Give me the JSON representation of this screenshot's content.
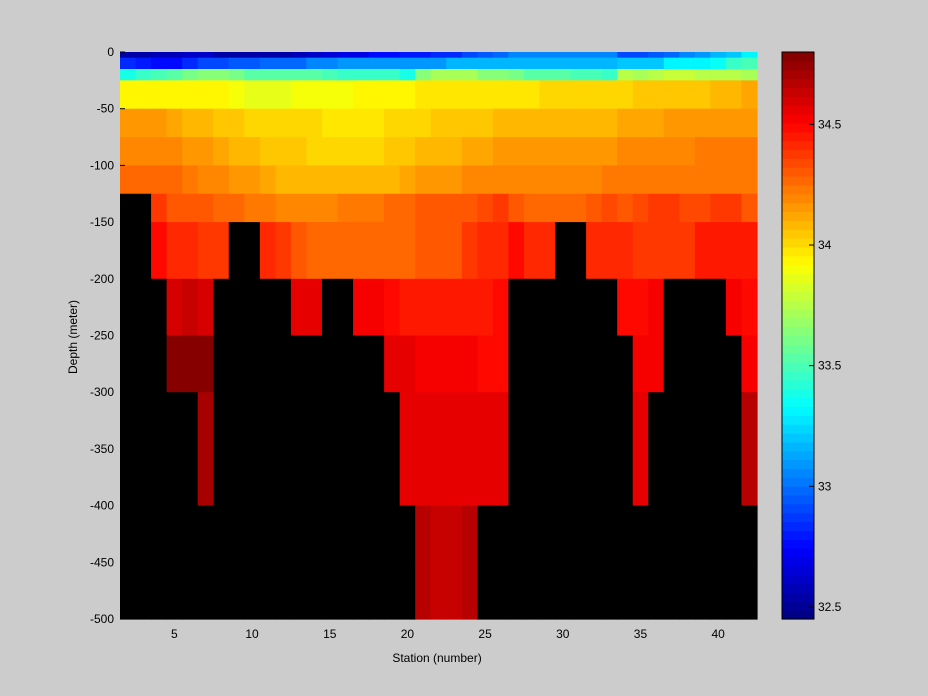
{
  "figure": {
    "background": "#cccccc"
  },
  "chart_data": {
    "type": "heatmap",
    "title": "",
    "xlabel": "Station (number)",
    "ylabel": "Depth (meter)",
    "xlim": [
      1.5,
      42.5
    ],
    "ylim": [
      -500,
      0
    ],
    "x_ticks": [
      5,
      10,
      15,
      20,
      25,
      30,
      35,
      40
    ],
    "y_ticks": [
      0,
      -50,
      -100,
      -150,
      -200,
      -250,
      -300,
      -350,
      -400,
      -450,
      -500
    ],
    "stations_start": 2,
    "depth_bins_top": [
      0,
      -5,
      -15,
      -25,
      -50,
      -75,
      -100,
      -125,
      -150,
      -200,
      -250,
      -300,
      -400,
      -450,
      -500
    ],
    "nodata_color": "#000000",
    "colormap": "jet",
    "colorbar": {
      "range": [
        32.45,
        34.8
      ],
      "ticks": [
        32.5,
        33,
        33.5,
        34,
        34.5
      ],
      "levels": 64
    },
    "salinity_grid": [
      [
        32.55,
        32.55,
        32.58,
        32.58,
        32.6,
        32.6,
        32.55,
        32.55,
        32.53,
        32.53,
        32.56,
        32.58,
        32.62,
        32.65,
        32.68,
        32.7,
        32.75,
        32.78,
        32.8,
        32.8,
        32.83,
        32.85,
        32.9,
        32.95,
        33.0,
        33.05,
        33.05,
        33.05,
        33.05,
        33.05,
        33.05,
        33.05,
        32.9,
        32.9,
        32.95,
        33.0,
        33.05,
        33.1,
        33.15,
        33.2,
        33.3
      ],
      [
        32.85,
        32.8,
        32.75,
        32.75,
        32.85,
        32.9,
        32.9,
        32.95,
        32.95,
        33.0,
        33.0,
        33.0,
        33.05,
        33.05,
        33.1,
        33.1,
        33.1,
        33.1,
        33.1,
        33.1,
        33.1,
        33.15,
        33.15,
        33.15,
        33.15,
        33.15,
        33.15,
        33.15,
        33.15,
        33.15,
        33.15,
        33.15,
        33.2,
        33.2,
        33.2,
        33.3,
        33.3,
        33.3,
        33.35,
        33.45,
        33.5
      ],
      [
        33.4,
        33.45,
        33.5,
        33.55,
        33.6,
        33.65,
        33.65,
        33.6,
        33.55,
        33.55,
        33.55,
        33.55,
        33.55,
        33.5,
        33.45,
        33.45,
        33.45,
        33.45,
        33.4,
        33.65,
        33.7,
        33.7,
        33.7,
        33.65,
        33.65,
        33.6,
        33.55,
        33.55,
        33.55,
        33.5,
        33.5,
        33.45,
        33.75,
        33.7,
        33.75,
        33.8,
        33.8,
        33.75,
        33.75,
        33.75,
        33.7
      ],
      [
        33.95,
        33.95,
        33.95,
        33.95,
        33.95,
        33.95,
        33.92,
        33.9,
        33.88,
        33.88,
        33.88,
        33.9,
        33.9,
        33.9,
        33.9,
        33.92,
        33.92,
        33.94,
        33.94,
        33.96,
        33.96,
        33.96,
        33.96,
        33.96,
        33.96,
        33.98,
        33.98,
        34.0,
        34.0,
        34.0,
        34.0,
        34.0,
        34.02,
        34.04,
        34.04,
        34.06,
        34.06,
        34.06,
        34.08,
        34.1,
        34.12
      ],
      [
        34.15,
        34.15,
        34.15,
        34.12,
        34.1,
        34.08,
        34.05,
        34.05,
        34.02,
        34.02,
        34.0,
        34.0,
        34.0,
        33.98,
        33.98,
        33.98,
        33.98,
        34.0,
        34.0,
        34.02,
        34.04,
        34.04,
        34.06,
        34.06,
        34.08,
        34.08,
        34.08,
        34.1,
        34.1,
        34.1,
        34.1,
        34.1,
        34.12,
        34.12,
        34.12,
        34.14,
        34.14,
        34.14,
        34.16,
        34.16,
        34.16
      ],
      [
        34.2,
        34.2,
        34.2,
        34.18,
        34.16,
        34.14,
        34.12,
        34.1,
        34.08,
        34.06,
        34.04,
        34.04,
        34.02,
        34.0,
        34.0,
        34.0,
        34.02,
        34.04,
        34.06,
        34.08,
        34.1,
        34.1,
        34.12,
        34.12,
        34.14,
        34.14,
        34.14,
        34.16,
        34.16,
        34.16,
        34.16,
        34.16,
        34.18,
        34.18,
        34.2,
        34.2,
        34.2,
        34.22,
        34.22,
        34.22,
        34.22
      ],
      [
        34.25,
        34.25,
        34.25,
        34.25,
        34.22,
        34.2,
        34.18,
        34.16,
        34.14,
        34.12,
        34.1,
        34.1,
        34.08,
        34.08,
        34.08,
        34.08,
        34.1,
        34.1,
        34.12,
        34.14,
        34.16,
        34.16,
        34.18,
        34.18,
        34.18,
        34.18,
        34.2,
        34.2,
        34.2,
        34.2,
        34.2,
        34.22,
        34.22,
        34.24,
        34.24,
        34.24,
        34.24,
        34.24,
        34.24,
        34.24,
        34.24
      ],
      [
        null,
        null,
        34.38,
        34.32,
        34.3,
        34.3,
        34.28,
        34.26,
        34.24,
        34.22,
        34.2,
        34.2,
        34.2,
        34.2,
        34.22,
        34.22,
        34.24,
        34.26,
        34.28,
        34.3,
        34.3,
        34.32,
        34.32,
        34.34,
        34.36,
        34.3,
        34.28,
        34.28,
        34.28,
        34.28,
        34.3,
        34.34,
        34.32,
        34.34,
        34.36,
        34.36,
        34.34,
        34.34,
        34.36,
        34.38,
        34.3
      ],
      [
        null,
        null,
        34.48,
        34.42,
        34.4,
        34.38,
        34.38,
        null,
        null,
        34.42,
        34.36,
        34.3,
        34.28,
        34.26,
        34.26,
        34.26,
        34.26,
        34.28,
        34.28,
        34.3,
        34.3,
        34.32,
        34.38,
        34.4,
        34.42,
        34.5,
        34.4,
        34.4,
        null,
        null,
        34.42,
        34.4,
        34.4,
        34.38,
        34.38,
        34.38,
        34.38,
        34.44,
        34.44,
        34.44,
        34.44
      ],
      [
        null,
        null,
        null,
        34.58,
        34.62,
        34.58,
        null,
        null,
        null,
        null,
        null,
        34.55,
        34.55,
        null,
        null,
        34.52,
        34.52,
        34.48,
        34.46,
        34.46,
        34.44,
        34.44,
        34.46,
        34.46,
        34.5,
        null,
        null,
        null,
        null,
        null,
        null,
        null,
        34.48,
        34.5,
        34.52,
        null,
        null,
        null,
        null,
        34.54,
        34.48
      ],
      [
        null,
        null,
        null,
        34.78,
        34.78,
        34.78,
        null,
        null,
        null,
        null,
        null,
        null,
        null,
        null,
        null,
        null,
        null,
        34.55,
        34.55,
        34.52,
        34.52,
        34.52,
        34.52,
        34.5,
        34.5,
        null,
        null,
        null,
        null,
        null,
        null,
        null,
        null,
        34.52,
        34.52,
        null,
        null,
        null,
        null,
        null,
        34.52
      ],
      [
        null,
        null,
        null,
        null,
        null,
        34.72,
        null,
        null,
        null,
        null,
        null,
        null,
        null,
        null,
        null,
        null,
        null,
        null,
        34.55,
        34.55,
        34.55,
        34.55,
        34.55,
        34.55,
        34.55,
        null,
        null,
        null,
        null,
        null,
        null,
        null,
        null,
        34.55,
        null,
        null,
        null,
        null,
        null,
        null,
        34.66
      ],
      [
        null,
        null,
        null,
        null,
        null,
        null,
        null,
        null,
        null,
        null,
        null,
        null,
        null,
        null,
        null,
        null,
        null,
        null,
        null,
        34.68,
        34.62,
        34.62,
        34.68,
        null,
        null,
        null,
        null,
        null,
        null,
        null,
        null,
        null,
        null,
        null,
        null,
        null,
        null,
        null,
        null,
        null,
        null
      ],
      [
        null,
        null,
        null,
        null,
        null,
        null,
        null,
        null,
        null,
        null,
        null,
        null,
        null,
        null,
        null,
        null,
        null,
        null,
        null,
        34.68,
        34.62,
        34.62,
        34.68,
        null,
        null,
        null,
        null,
        null,
        null,
        null,
        null,
        null,
        null,
        null,
        null,
        null,
        null,
        null,
        null,
        null,
        null
      ]
    ]
  }
}
